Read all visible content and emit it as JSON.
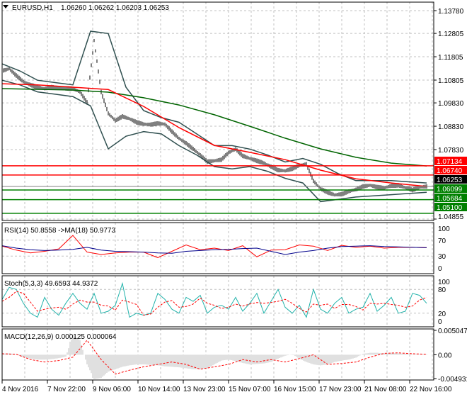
{
  "header": {
    "symbol": "EURUSD,H1",
    "ohlc": "1.06260 1.06262 1.06203 1.06253"
  },
  "colors": {
    "ma_fast": "#ff0000",
    "ma_slow": "#006400",
    "bands": "#2f4f4f",
    "rsi": "#ff0000",
    "rsi_ma": "#00008b",
    "stoch_main": "#20b2aa",
    "stoch_signal": "#ff0000",
    "macd_hist": "#c0c0c0",
    "macd_signal": "#ff0000",
    "resistance": "#ff0000",
    "support": "#008000",
    "current": "#000000"
  },
  "chart_data": [
    {
      "type": "line",
      "title": "EURUSD,H1",
      "ylim": [
        1.04855,
        1.1425
      ],
      "y_ticks": [
        "1.13780",
        "1.12805",
        "1.11805",
        "1.10805",
        "1.09830",
        "1.08830",
        "1.07830",
        "1.04855"
      ],
      "x_tick_labels": [
        "4 Nov 2016",
        "7 Nov 22:00",
        "9 Nov 06:00",
        "10 Nov 14:00",
        "13 Nov 23:00",
        "15 Nov 07:00",
        "16 Nov 15:00",
        "17 Nov 23:00",
        "21 Nov 08:00",
        "22 Nov 16:00"
      ],
      "grid": true,
      "price": [
        1.112,
        1.1129,
        1.11,
        1.1074,
        1.106,
        1.105,
        1.1044,
        1.105,
        1.1046,
        1.1045,
        1.1044,
        1.103,
        1.0985,
        1.125,
        1.1029,
        1.0938,
        1.0907,
        1.0925,
        1.0915,
        1.09,
        1.0892,
        1.089,
        1.0895,
        1.0892,
        1.086,
        1.0831,
        1.081,
        1.0786,
        1.076,
        1.0731,
        1.0735,
        1.074,
        1.077,
        1.0785,
        1.0756,
        1.0745,
        1.0735,
        1.0725,
        1.071,
        1.0695,
        1.0692,
        1.0701,
        1.0715,
        1.072,
        1.0649,
        1.0615,
        1.06,
        1.0589,
        1.0592,
        1.0604,
        1.0612,
        1.0625,
        1.063,
        1.0622,
        1.0619,
        1.0628,
        1.063,
        1.062,
        1.061,
        1.0622,
        1.0625
      ],
      "ma_fast": [
        1.1065,
        1.106,
        1.105,
        1.104,
        1.0968,
        1.0877,
        1.0801,
        1.0771,
        1.074,
        1.0695,
        1.0658,
        1.064,
        1.0625
      ],
      "ma_slow": [
        1.1044,
        1.1041,
        1.1038,
        1.1029,
        1.1005,
        1.0974,
        1.0932,
        1.0883,
        1.0832,
        1.0786,
        1.075,
        1.0725,
        1.0713
      ],
      "band_upper": [
        1.115,
        1.112,
        1.108,
        1.107,
        1.106,
        1.129,
        1.128,
        1.105,
        1.095,
        1.092,
        1.09,
        1.085,
        1.08,
        1.08,
        1.0785,
        1.076,
        1.073,
        1.0745,
        1.072,
        1.068,
        1.065,
        1.065,
        1.065,
        1.0645,
        1.064
      ],
      "band_lower": [
        1.108,
        1.106,
        1.103,
        1.102,
        1.101,
        1.097,
        1.0786,
        1.084,
        1.086,
        1.085,
        1.08,
        1.076,
        1.071,
        1.07,
        1.071,
        1.069,
        1.066,
        1.064,
        1.056,
        1.057,
        1.058,
        1.0585,
        1.059,
        1.0595,
        1.06
      ],
      "levels": [
        {
          "value": 1.07134,
          "label": "1.07134",
          "kind": "resistance"
        },
        {
          "value": 1.0674,
          "label": "1.06740",
          "kind": "resistance"
        },
        {
          "value": 1.06253,
          "label": "1.06253",
          "kind": "current"
        },
        {
          "value": 1.06099,
          "label": "1.06099",
          "kind": "support"
        },
        {
          "value": 1.05684,
          "label": "1.05684",
          "kind": "support"
        },
        {
          "value": 1.051,
          "label": "1.05100",
          "kind": "support"
        }
      ]
    },
    {
      "type": "line",
      "title": "RSI(14) 50.8558  ->MA(18) 50.9773",
      "ylim": [
        0,
        100
      ],
      "y_ticks": [
        "100",
        "70",
        "30",
        "0"
      ],
      "rsi": [
        55,
        45,
        38,
        42,
        48,
        82,
        40,
        34,
        38,
        40,
        40,
        26,
        42,
        58,
        46,
        50,
        44,
        56,
        28,
        45,
        46,
        58,
        55,
        44,
        57,
        52,
        55,
        50,
        52,
        52,
        51
      ],
      "rsi_ma": [
        56,
        50,
        46,
        44,
        45,
        47,
        52,
        45,
        42,
        41,
        40,
        38,
        37,
        42,
        44,
        46,
        47,
        49,
        50,
        42,
        34,
        40,
        44,
        50,
        54,
        55,
        56,
        54,
        53,
        52,
        51
      ]
    },
    {
      "type": "line",
      "title": "Stoch(5,3,3) 49.6593 44.9372",
      "ylim": [
        0,
        100
      ],
      "y_ticks": [
        "100",
        "80",
        "20",
        "0"
      ],
      "main": [
        55,
        85,
        80,
        45,
        20,
        10,
        60,
        30,
        15,
        45,
        70,
        45,
        30,
        70,
        20,
        25,
        40,
        95,
        10,
        20,
        15,
        20,
        70,
        55,
        30,
        20,
        60,
        50,
        65,
        20,
        35,
        40,
        30,
        60,
        25,
        45,
        70,
        20,
        50,
        80,
        35,
        20,
        40,
        10,
        80,
        30,
        20,
        45,
        60,
        20,
        30,
        35,
        70,
        25,
        40,
        60,
        20,
        25,
        70,
        65,
        45
      ],
      "signal": [
        50,
        60,
        75,
        70,
        48,
        25,
        30,
        33,
        35,
        30,
        43,
        53,
        48,
        48,
        40,
        38,
        28,
        53,
        48,
        42,
        15,
        18,
        35,
        48,
        52,
        35,
        37,
        43,
        58,
        45,
        40,
        32,
        35,
        43,
        38,
        43,
        47,
        45,
        47,
        50,
        55,
        45,
        32,
        23,
        43,
        40,
        43,
        32,
        42,
        42,
        37,
        28,
        45,
        43,
        45,
        42,
        40,
        35,
        38,
        53,
        60
      ]
    },
    {
      "type": "bar",
      "title": "MACD(12,26,9) 0.000125 0.000064",
      "ylim": [
        -0.004931,
        0.005047
      ],
      "y_ticks": [
        "0.005047",
        "0.00",
        "-0.004931"
      ],
      "histogram": [
        0.0002,
        0.0003,
        0.0001,
        -0.0005,
        -0.0008,
        -0.001,
        -0.001,
        -0.0009,
        -0.0007,
        -0.0004,
        0.004,
        0.003,
        -0.002,
        -0.005,
        -0.0048,
        -0.0035,
        -0.003,
        -0.0025,
        -0.0022,
        -0.002,
        -0.002,
        -0.0021,
        -0.0022,
        -0.0024,
        -0.0025,
        -0.0026,
        -0.0028,
        -0.003,
        -0.003,
        -0.0028,
        -0.002,
        -0.0012,
        -0.001,
        -0.0013,
        -0.0017,
        -0.002,
        -0.0019,
        -0.0018,
        -0.0015,
        -0.0008,
        -0.0002,
        0.0001,
        -0.0008,
        -0.0015,
        -0.002,
        -0.0022,
        -0.002,
        -0.0015,
        -0.0012,
        -0.001,
        -0.0006,
        0.0002,
        0.0004,
        0.0004,
        0.0003,
        0.0004,
        0.0003,
        0.0002,
        0.0001,
        0.0001,
        0.0001
      ],
      "signal": [
        0.0002,
        0.0001,
        -0.001,
        -0.0015,
        -0.0012,
        -0.0005,
        0.003,
        -0.001,
        -0.004,
        -0.0032,
        -0.0025,
        -0.002,
        -0.0015,
        -0.002,
        -0.003,
        -0.0025,
        -0.002,
        -0.001,
        -0.0015,
        -0.001,
        -0.0015,
        -0.0008,
        0.0,
        -0.002,
        -0.0018,
        -0.0015,
        -0.0005,
        0.0003,
        0.0004,
        0.0002,
        0.0001
      ]
    }
  ]
}
